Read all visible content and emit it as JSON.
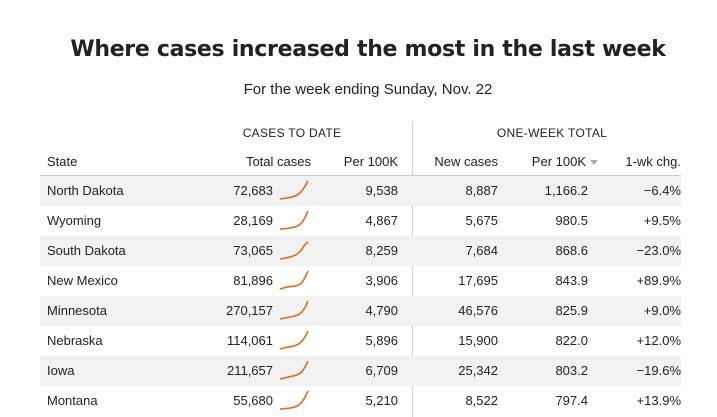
{
  "title": "Where cases increased the most in the last week",
  "subtitle": "For the week ending Sunday, Nov. 22",
  "groups": {
    "cases_to_date": "CASES TO DATE",
    "one_week_total": "ONE-WEEK TOTAL"
  },
  "columns": {
    "state": "State",
    "total_cases": "Total cases",
    "per100k": "Per 100K",
    "new_cases": "New cases",
    "week_per100k": "Per 100K",
    "change": "1-wk chg."
  },
  "colors": {
    "sparkline": "#e06a1e",
    "row_alt": "#f2f2f2",
    "divider": "#d4d4d4"
  },
  "chart_data": {
    "type": "table",
    "title": "Where cases increased the most in the last week",
    "subtitle": "For the week ending Sunday, Nov. 22",
    "rows": [
      {
        "state": "North Dakota",
        "total_cases": "72,683",
        "per100k": "9,538",
        "new_cases": "8,887",
        "week_per100k": "1,166.2",
        "change": "−6.4%",
        "trend": [
          0,
          0.02,
          0.05,
          0.08,
          0.12,
          0.18,
          0.28,
          0.45,
          0.7,
          1.0
        ]
      },
      {
        "state": "Wyoming",
        "total_cases": "28,169",
        "per100k": "4,867",
        "new_cases": "5,675",
        "week_per100k": "980.5",
        "change": "+9.5%",
        "trend": [
          0,
          0.01,
          0.03,
          0.05,
          0.08,
          0.12,
          0.2,
          0.35,
          0.62,
          1.0
        ]
      },
      {
        "state": "South Dakota",
        "total_cases": "73,065",
        "per100k": "8,259",
        "new_cases": "7,684",
        "week_per100k": "868.6",
        "change": "−23.0%",
        "trend": [
          0,
          0.03,
          0.06,
          0.1,
          0.15,
          0.22,
          0.34,
          0.52,
          0.8,
          0.95
        ]
      },
      {
        "state": "New Mexico",
        "total_cases": "81,896",
        "per100k": "3,906",
        "new_cases": "17,695",
        "week_per100k": "843.9",
        "change": "+89.9%",
        "trend": [
          0,
          0.05,
          0.1,
          0.13,
          0.15,
          0.17,
          0.22,
          0.35,
          0.62,
          1.0
        ]
      },
      {
        "state": "Minnesota",
        "total_cases": "270,157",
        "per100k": "4,790",
        "new_cases": "46,576",
        "week_per100k": "825.9",
        "change": "+9.0%",
        "trend": [
          0,
          0.04,
          0.08,
          0.11,
          0.14,
          0.18,
          0.25,
          0.38,
          0.62,
          1.0
        ]
      },
      {
        "state": "Nebraska",
        "total_cases": "114,061",
        "per100k": "5,896",
        "new_cases": "15,900",
        "week_per100k": "822.0",
        "change": "+12.0%",
        "trend": [
          0,
          0.05,
          0.09,
          0.12,
          0.15,
          0.2,
          0.28,
          0.42,
          0.66,
          1.0
        ]
      },
      {
        "state": "Iowa",
        "total_cases": "211,657",
        "per100k": "6,709",
        "new_cases": "25,342",
        "week_per100k": "803.2",
        "change": "−19.6%",
        "trend": [
          0,
          0.04,
          0.08,
          0.12,
          0.16,
          0.2,
          0.27,
          0.4,
          0.65,
          1.0
        ]
      },
      {
        "state": "Montana",
        "total_cases": "55,680",
        "per100k": "5,210",
        "new_cases": "8,522",
        "week_per100k": "797.4",
        "change": "+13.9%",
        "trend": [
          0,
          0.01,
          0.03,
          0.05,
          0.08,
          0.13,
          0.22,
          0.38,
          0.64,
          1.0
        ]
      }
    ]
  }
}
